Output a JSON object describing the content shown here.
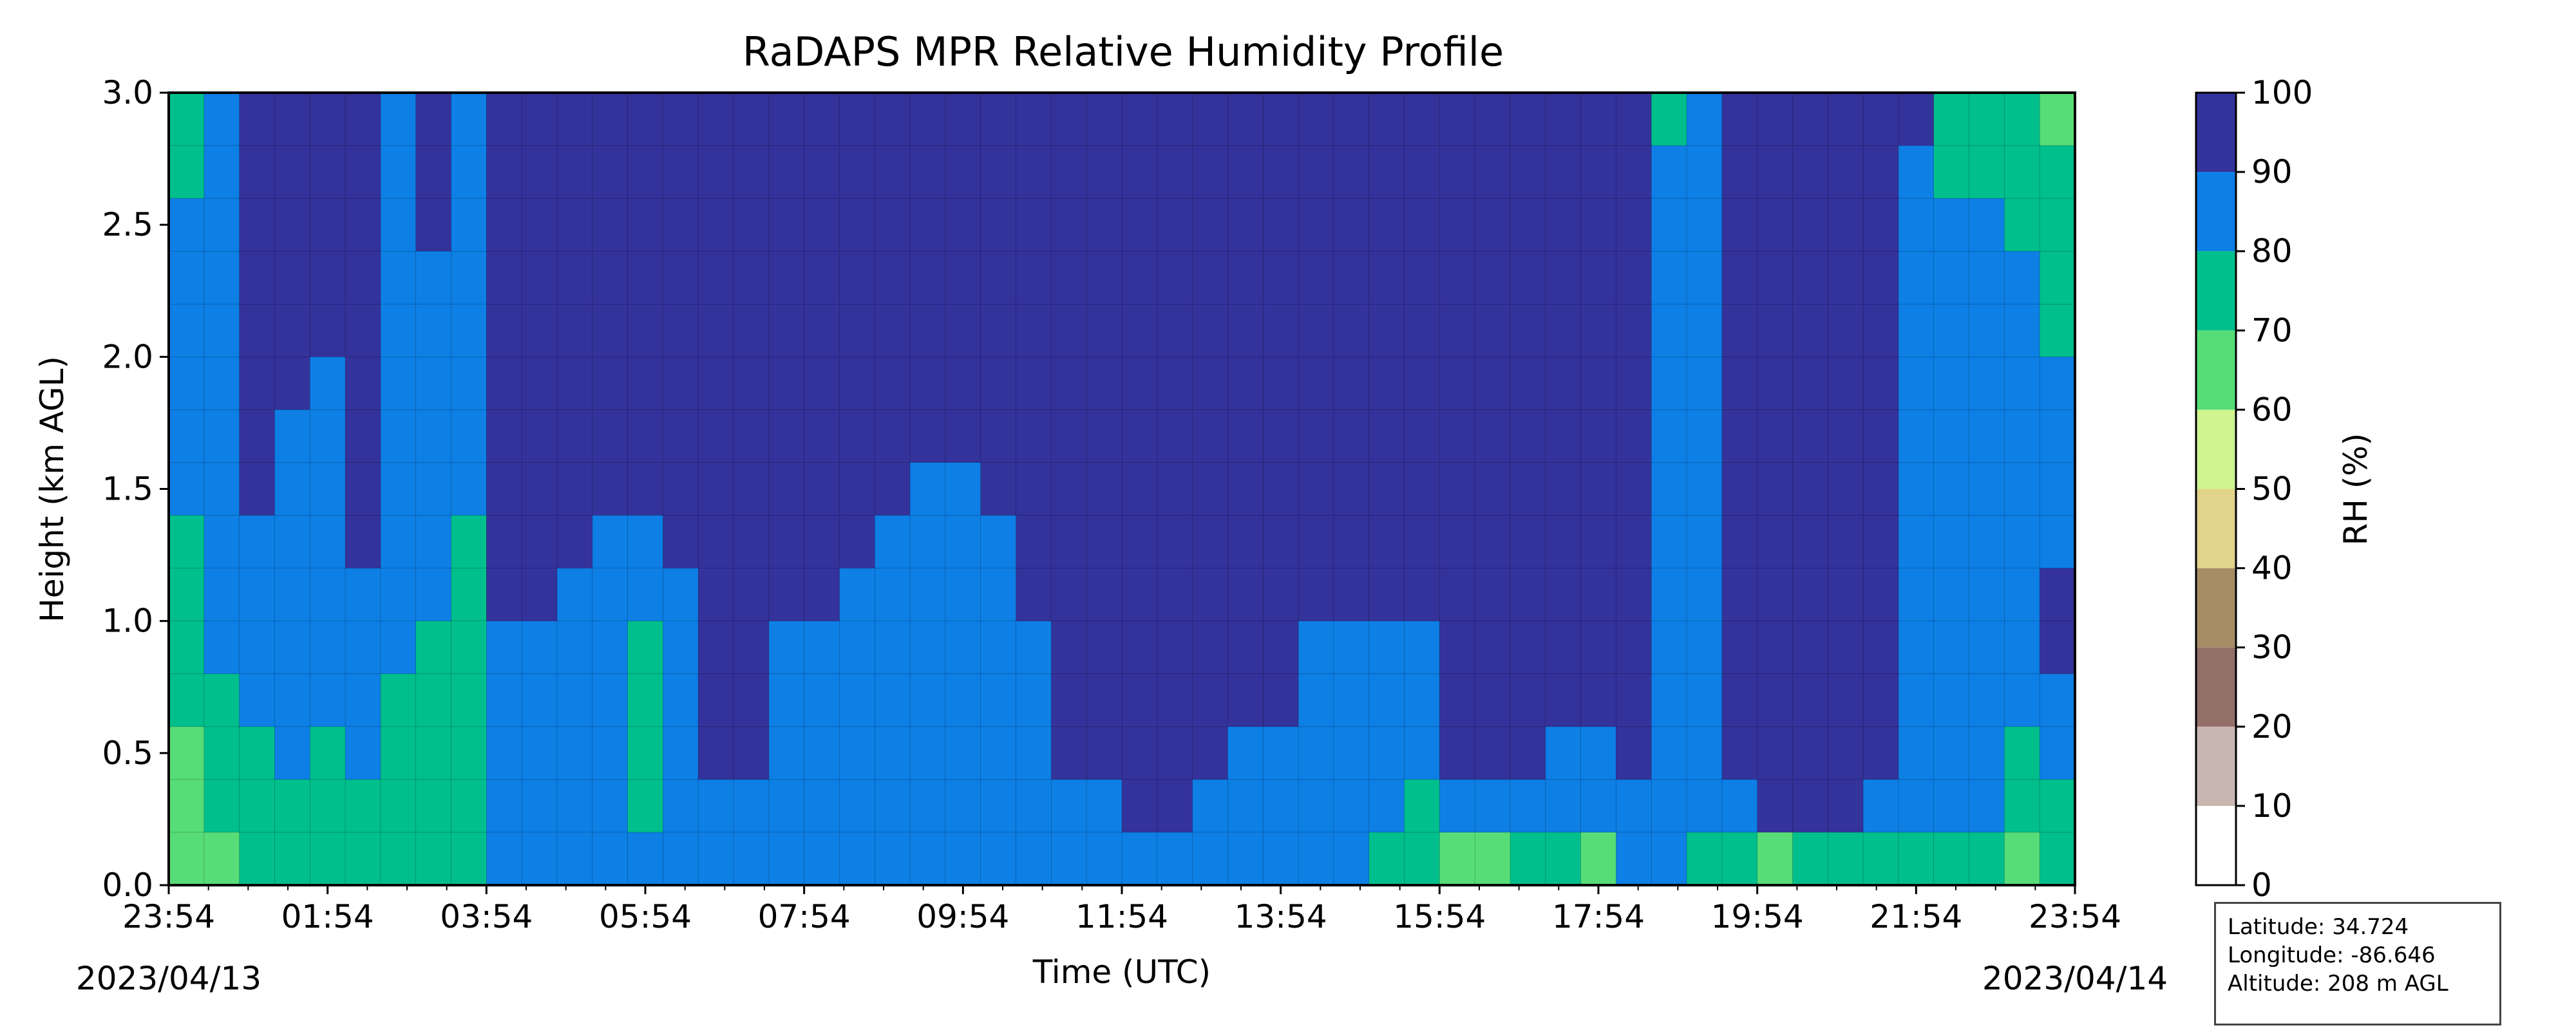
{
  "chart_data": {
    "type": "heatmap",
    "title": "RaDAPS MPR Relative Humidity Profile",
    "xlabel": "Time (UTC)",
    "ylabel": "Height (km AGL)",
    "x_tick_labels": [
      "23:54",
      "01:54",
      "03:54",
      "05:54",
      "07:54",
      "09:54",
      "11:54",
      "13:54",
      "15:54",
      "17:54",
      "19:54",
      "21:54",
      "23:54"
    ],
    "x_ticks_hours": [
      0,
      2,
      4,
      6,
      8,
      10,
      12,
      14,
      16,
      18,
      20,
      22,
      24
    ],
    "x_minor_step_hours": 0.5,
    "start_date": "2023/04/13",
    "end_date": "2023/04/14",
    "xlim_hours": [
      0,
      24
    ],
    "ylim": [
      0.0,
      3.0
    ],
    "y_ticks": [
      0.0,
      0.5,
      1.0,
      1.5,
      2.0,
      2.5,
      3.0
    ],
    "y_tick_labels": [
      "0.0",
      "0.5",
      "1.0",
      "1.5",
      "2.0",
      "2.5",
      "3.0"
    ],
    "colorbar": {
      "label": "RH (%)",
      "levels": [
        0,
        10,
        20,
        30,
        40,
        50,
        60,
        70,
        80,
        90,
        100
      ],
      "tick_labels": [
        "0",
        "10",
        "20",
        "30",
        "40",
        "50",
        "60",
        "70",
        "80",
        "90",
        "100"
      ],
      "colors": [
        "#ffffff",
        "#c8b7b1",
        "#937067",
        "#a78d66",
        "#e1d38a",
        "#cef58f",
        "#57dd77",
        "#00bf8c",
        "#0d7fe5",
        "#34329b"
      ]
    },
    "contour_line_color": "#000000",
    "field_rows": [
      {
        "top_km": 3.0,
        "rh": [
          72,
          82,
          93,
          93,
          93,
          93,
          85,
          95,
          85,
          95,
          95,
          95,
          95,
          95,
          95,
          95,
          95,
          95,
          95,
          95,
          95,
          95,
          95,
          95,
          95,
          95,
          95,
          95,
          95,
          95,
          95,
          95,
          95,
          95,
          95,
          95,
          95,
          95,
          95,
          95,
          95,
          95,
          77,
          85,
          95,
          95,
          95,
          95,
          95,
          95,
          77,
          77,
          77,
          66
        ]
      },
      {
        "top_km": 2.8,
        "rh": [
          78,
          85,
          93,
          93,
          93,
          93,
          88,
          95,
          85,
          95,
          95,
          95,
          95,
          95,
          95,
          95,
          95,
          95,
          95,
          95,
          95,
          95,
          95,
          95,
          95,
          95,
          95,
          95,
          95,
          95,
          95,
          95,
          95,
          95,
          95,
          95,
          95,
          95,
          95,
          95,
          95,
          95,
          80,
          85,
          95,
          95,
          95,
          95,
          95,
          85,
          77,
          77,
          77,
          72
        ]
      },
      {
        "top_km": 2.6,
        "rh": [
          85,
          88,
          93,
          93,
          93,
          93,
          88,
          92,
          85,
          95,
          95,
          95,
          95,
          95,
          95,
          95,
          95,
          95,
          95,
          95,
          95,
          95,
          95,
          95,
          95,
          95,
          95,
          95,
          95,
          95,
          95,
          95,
          95,
          95,
          95,
          95,
          95,
          95,
          95,
          95,
          95,
          95,
          85,
          85,
          95,
          95,
          95,
          95,
          95,
          85,
          85,
          85,
          77,
          75
        ]
      },
      {
        "top_km": 2.4,
        "rh": [
          88,
          88,
          93,
          93,
          93,
          93,
          88,
          88,
          85,
          95,
          95,
          95,
          95,
          95,
          95,
          95,
          95,
          95,
          95,
          95,
          95,
          95,
          95,
          95,
          95,
          95,
          95,
          95,
          95,
          95,
          95,
          95,
          95,
          95,
          95,
          95,
          95,
          95,
          95,
          95,
          95,
          95,
          85,
          85,
          95,
          95,
          95,
          95,
          95,
          85,
          85,
          85,
          85,
          77
        ]
      },
      {
        "top_km": 2.2,
        "rh": [
          88,
          88,
          93,
          93,
          93,
          93,
          88,
          85,
          85,
          95,
          95,
          95,
          95,
          95,
          95,
          95,
          95,
          95,
          95,
          95,
          95,
          95,
          95,
          95,
          95,
          95,
          95,
          95,
          95,
          95,
          95,
          95,
          95,
          95,
          95,
          95,
          95,
          95,
          95,
          95,
          95,
          95,
          85,
          85,
          95,
          95,
          95,
          95,
          95,
          85,
          85,
          85,
          85,
          77
        ]
      },
      {
        "top_km": 2.0,
        "rh": [
          85,
          88,
          93,
          93,
          88,
          93,
          85,
          85,
          85,
          95,
          95,
          95,
          95,
          95,
          95,
          95,
          95,
          95,
          95,
          95,
          95,
          95,
          95,
          95,
          95,
          95,
          95,
          95,
          95,
          95,
          95,
          95,
          95,
          95,
          95,
          95,
          95,
          95,
          95,
          95,
          95,
          95,
          85,
          85,
          95,
          95,
          95,
          95,
          95,
          85,
          85,
          85,
          85,
          80
        ]
      },
      {
        "top_km": 1.8,
        "rh": [
          85,
          85,
          93,
          88,
          88,
          93,
          85,
          85,
          82,
          95,
          95,
          95,
          95,
          95,
          95,
          95,
          95,
          95,
          95,
          95,
          95,
          95,
          95,
          95,
          95,
          95,
          95,
          95,
          95,
          95,
          95,
          95,
          95,
          95,
          95,
          95,
          95,
          95,
          95,
          95,
          95,
          95,
          85,
          85,
          95,
          95,
          95,
          95,
          95,
          85,
          85,
          85,
          85,
          80
        ]
      },
      {
        "top_km": 1.6,
        "rh": [
          85,
          85,
          93,
          88,
          85,
          93,
          85,
          85,
          82,
          95,
          95,
          95,
          95,
          95,
          95,
          95,
          95,
          95,
          95,
          95,
          95,
          85,
          85,
          95,
          95,
          95,
          95,
          95,
          95,
          95,
          95,
          95,
          95,
          95,
          95,
          95,
          95,
          95,
          95,
          95,
          95,
          95,
          85,
          85,
          95,
          95,
          95,
          95,
          95,
          85,
          85,
          85,
          85,
          80
        ]
      },
      {
        "top_km": 1.4,
        "rh": [
          78,
          85,
          88,
          85,
          85,
          93,
          85,
          85,
          78,
          95,
          95,
          95,
          85,
          85,
          95,
          95,
          95,
          95,
          95,
          95,
          85,
          85,
          85,
          88,
          95,
          95,
          95,
          95,
          95,
          95,
          95,
          95,
          95,
          95,
          95,
          95,
          95,
          95,
          95,
          95,
          95,
          95,
          85,
          85,
          95,
          95,
          95,
          95,
          95,
          85,
          85,
          85,
          85,
          85
        ]
      },
      {
        "top_km": 1.2,
        "rh": [
          72,
          85,
          88,
          85,
          85,
          88,
          85,
          85,
          75,
          95,
          95,
          85,
          85,
          85,
          85,
          95,
          95,
          95,
          95,
          85,
          85,
          85,
          85,
          85,
          95,
          95,
          95,
          95,
          95,
          95,
          95,
          95,
          95,
          95,
          95,
          95,
          95,
          95,
          95,
          95,
          95,
          95,
          85,
          85,
          95,
          95,
          95,
          95,
          95,
          85,
          85,
          85,
          85,
          92
        ]
      },
      {
        "top_km": 1.0,
        "rh": [
          72,
          85,
          85,
          85,
          85,
          88,
          85,
          78,
          75,
          88,
          85,
          85,
          85,
          75,
          85,
          95,
          95,
          85,
          85,
          85,
          85,
          85,
          85,
          85,
          85,
          95,
          95,
          95,
          95,
          95,
          95,
          95,
          85,
          85,
          85,
          85,
          95,
          95,
          95,
          95,
          95,
          95,
          85,
          85,
          95,
          95,
          95,
          95,
          95,
          85,
          85,
          85,
          85,
          92
        ]
      },
      {
        "top_km": 0.8,
        "rh": [
          72,
          78,
          85,
          85,
          85,
          85,
          78,
          75,
          72,
          85,
          85,
          85,
          85,
          75,
          85,
          95,
          95,
          85,
          85,
          85,
          85,
          85,
          85,
          85,
          85,
          95,
          95,
          95,
          95,
          95,
          95,
          95,
          85,
          85,
          85,
          85,
          95,
          95,
          95,
          95,
          95,
          95,
          85,
          85,
          95,
          95,
          95,
          95,
          95,
          85,
          85,
          85,
          85,
          85
        ]
      },
      {
        "top_km": 0.6,
        "rh": [
          68,
          75,
          78,
          85,
          78,
          82,
          75,
          75,
          72,
          85,
          85,
          85,
          85,
          75,
          85,
          90,
          90,
          85,
          85,
          85,
          85,
          85,
          85,
          85,
          85,
          95,
          95,
          95,
          95,
          90,
          88,
          85,
          85,
          85,
          85,
          85,
          95,
          95,
          95,
          85,
          85,
          95,
          85,
          85,
          95,
          95,
          95,
          95,
          95,
          85,
          85,
          85,
          75,
          85
        ]
      },
      {
        "top_km": 0.4,
        "rh": [
          65,
          72,
          75,
          78,
          75,
          75,
          75,
          72,
          72,
          85,
          85,
          85,
          85,
          75,
          85,
          85,
          85,
          85,
          85,
          85,
          85,
          85,
          85,
          85,
          85,
          85,
          88,
          90,
          90,
          88,
          85,
          85,
          85,
          85,
          80,
          78,
          80,
          80,
          85,
          80,
          80,
          85,
          80,
          80,
          85,
          90,
          90,
          95,
          85,
          85,
          85,
          85,
          75,
          78
        ]
      },
      {
        "top_km": 0.2,
        "rh": [
          62,
          68,
          72,
          75,
          72,
          72,
          72,
          72,
          72,
          85,
          85,
          85,
          85,
          85,
          85,
          85,
          85,
          85,
          85,
          85,
          85,
          85,
          85,
          85,
          85,
          85,
          85,
          85,
          85,
          85,
          85,
          85,
          85,
          85,
          75,
          72,
          65,
          65,
          72,
          72,
          68,
          80,
          80,
          75,
          72,
          68,
          72,
          78,
          72,
          72,
          72,
          72,
          66,
          75
        ]
      },
      {
        "top_km": 0.0,
        "rh": [
          55,
          65,
          72,
          72,
          72,
          72,
          72,
          72,
          72,
          85,
          85,
          85,
          85,
          85,
          85,
          85,
          85,
          85,
          85,
          85,
          85,
          85,
          85,
          85,
          85,
          85,
          85,
          85,
          85,
          85,
          85,
          85,
          85,
          85,
          72,
          72,
          65,
          62,
          68,
          68,
          65,
          75,
          75,
          72,
          68,
          65,
          68,
          72,
          72,
          72,
          72,
          65,
          66,
          75
        ]
      }
    ]
  },
  "info": {
    "latitude": "Latitude: 34.724",
    "longitude": "Longitude: -86.646",
    "altitude": "Altitude: 208 m AGL"
  }
}
